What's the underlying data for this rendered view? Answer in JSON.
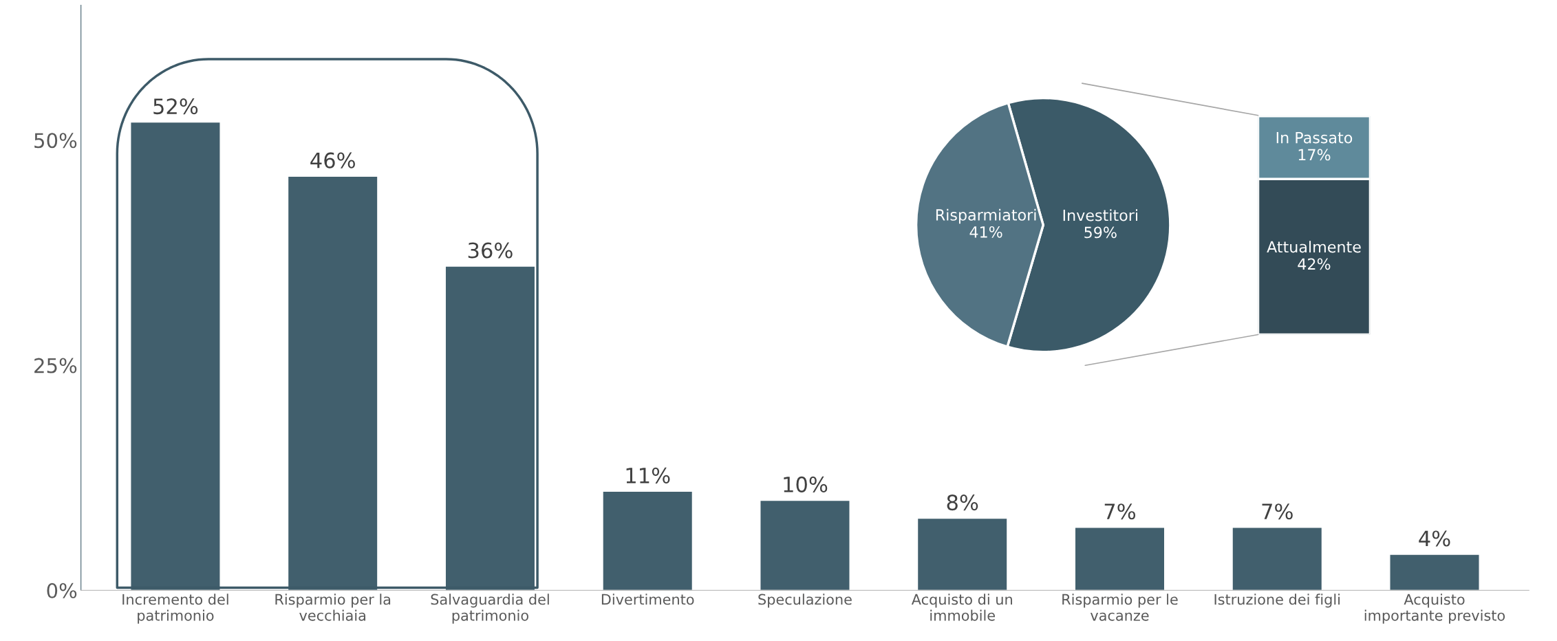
{
  "chart_data": [
    {
      "type": "bar",
      "categories": [
        "Incremento del\npatrimonio",
        "Risparmio per la\nvecchiaia",
        "Salvaguardia del\npatrimonio",
        "Divertimento",
        "Speculazione",
        "Acquisto di un\nimmobile",
        "Risparmio per le\nvacanze",
        "Istruzione dei figli",
        "Acquisto\nimportante previsto"
      ],
      "values": [
        52,
        46,
        36,
        11,
        10,
        8,
        7,
        7,
        4
      ],
      "color": "#415f6d",
      "value_labels": [
        "52%",
        "46%",
        "36%",
        "11%",
        "10%",
        "8%",
        "7%",
        "7%",
        "4%"
      ],
      "ylim": [
        0,
        65
      ],
      "yticks": [
        {
          "value": 0,
          "label": "0%"
        },
        {
          "value": 25,
          "label": "25%"
        },
        {
          "value": 50,
          "label": "50%"
        }
      ]
    },
    {
      "type": "pie",
      "categories": [
        "Investitori",
        "Risparmiatori"
      ],
      "values": [
        59,
        41
      ],
      "colors": [
        "#3b5a68",
        "#527383"
      ],
      "value_labels": [
        "59%",
        "41%"
      ]
    },
    {
      "type": "bar",
      "stacked": true,
      "categories": [
        null
      ],
      "series": [
        {
          "name": "Attualmente",
          "color": "#334b57",
          "values": [
            42
          ],
          "value_labels": [
            "42%"
          ]
        },
        {
          "name": "In Passato",
          "color": "#5f8a9b",
          "values": [
            17
          ],
          "value_labels": [
            "17%"
          ]
        }
      ]
    }
  ]
}
